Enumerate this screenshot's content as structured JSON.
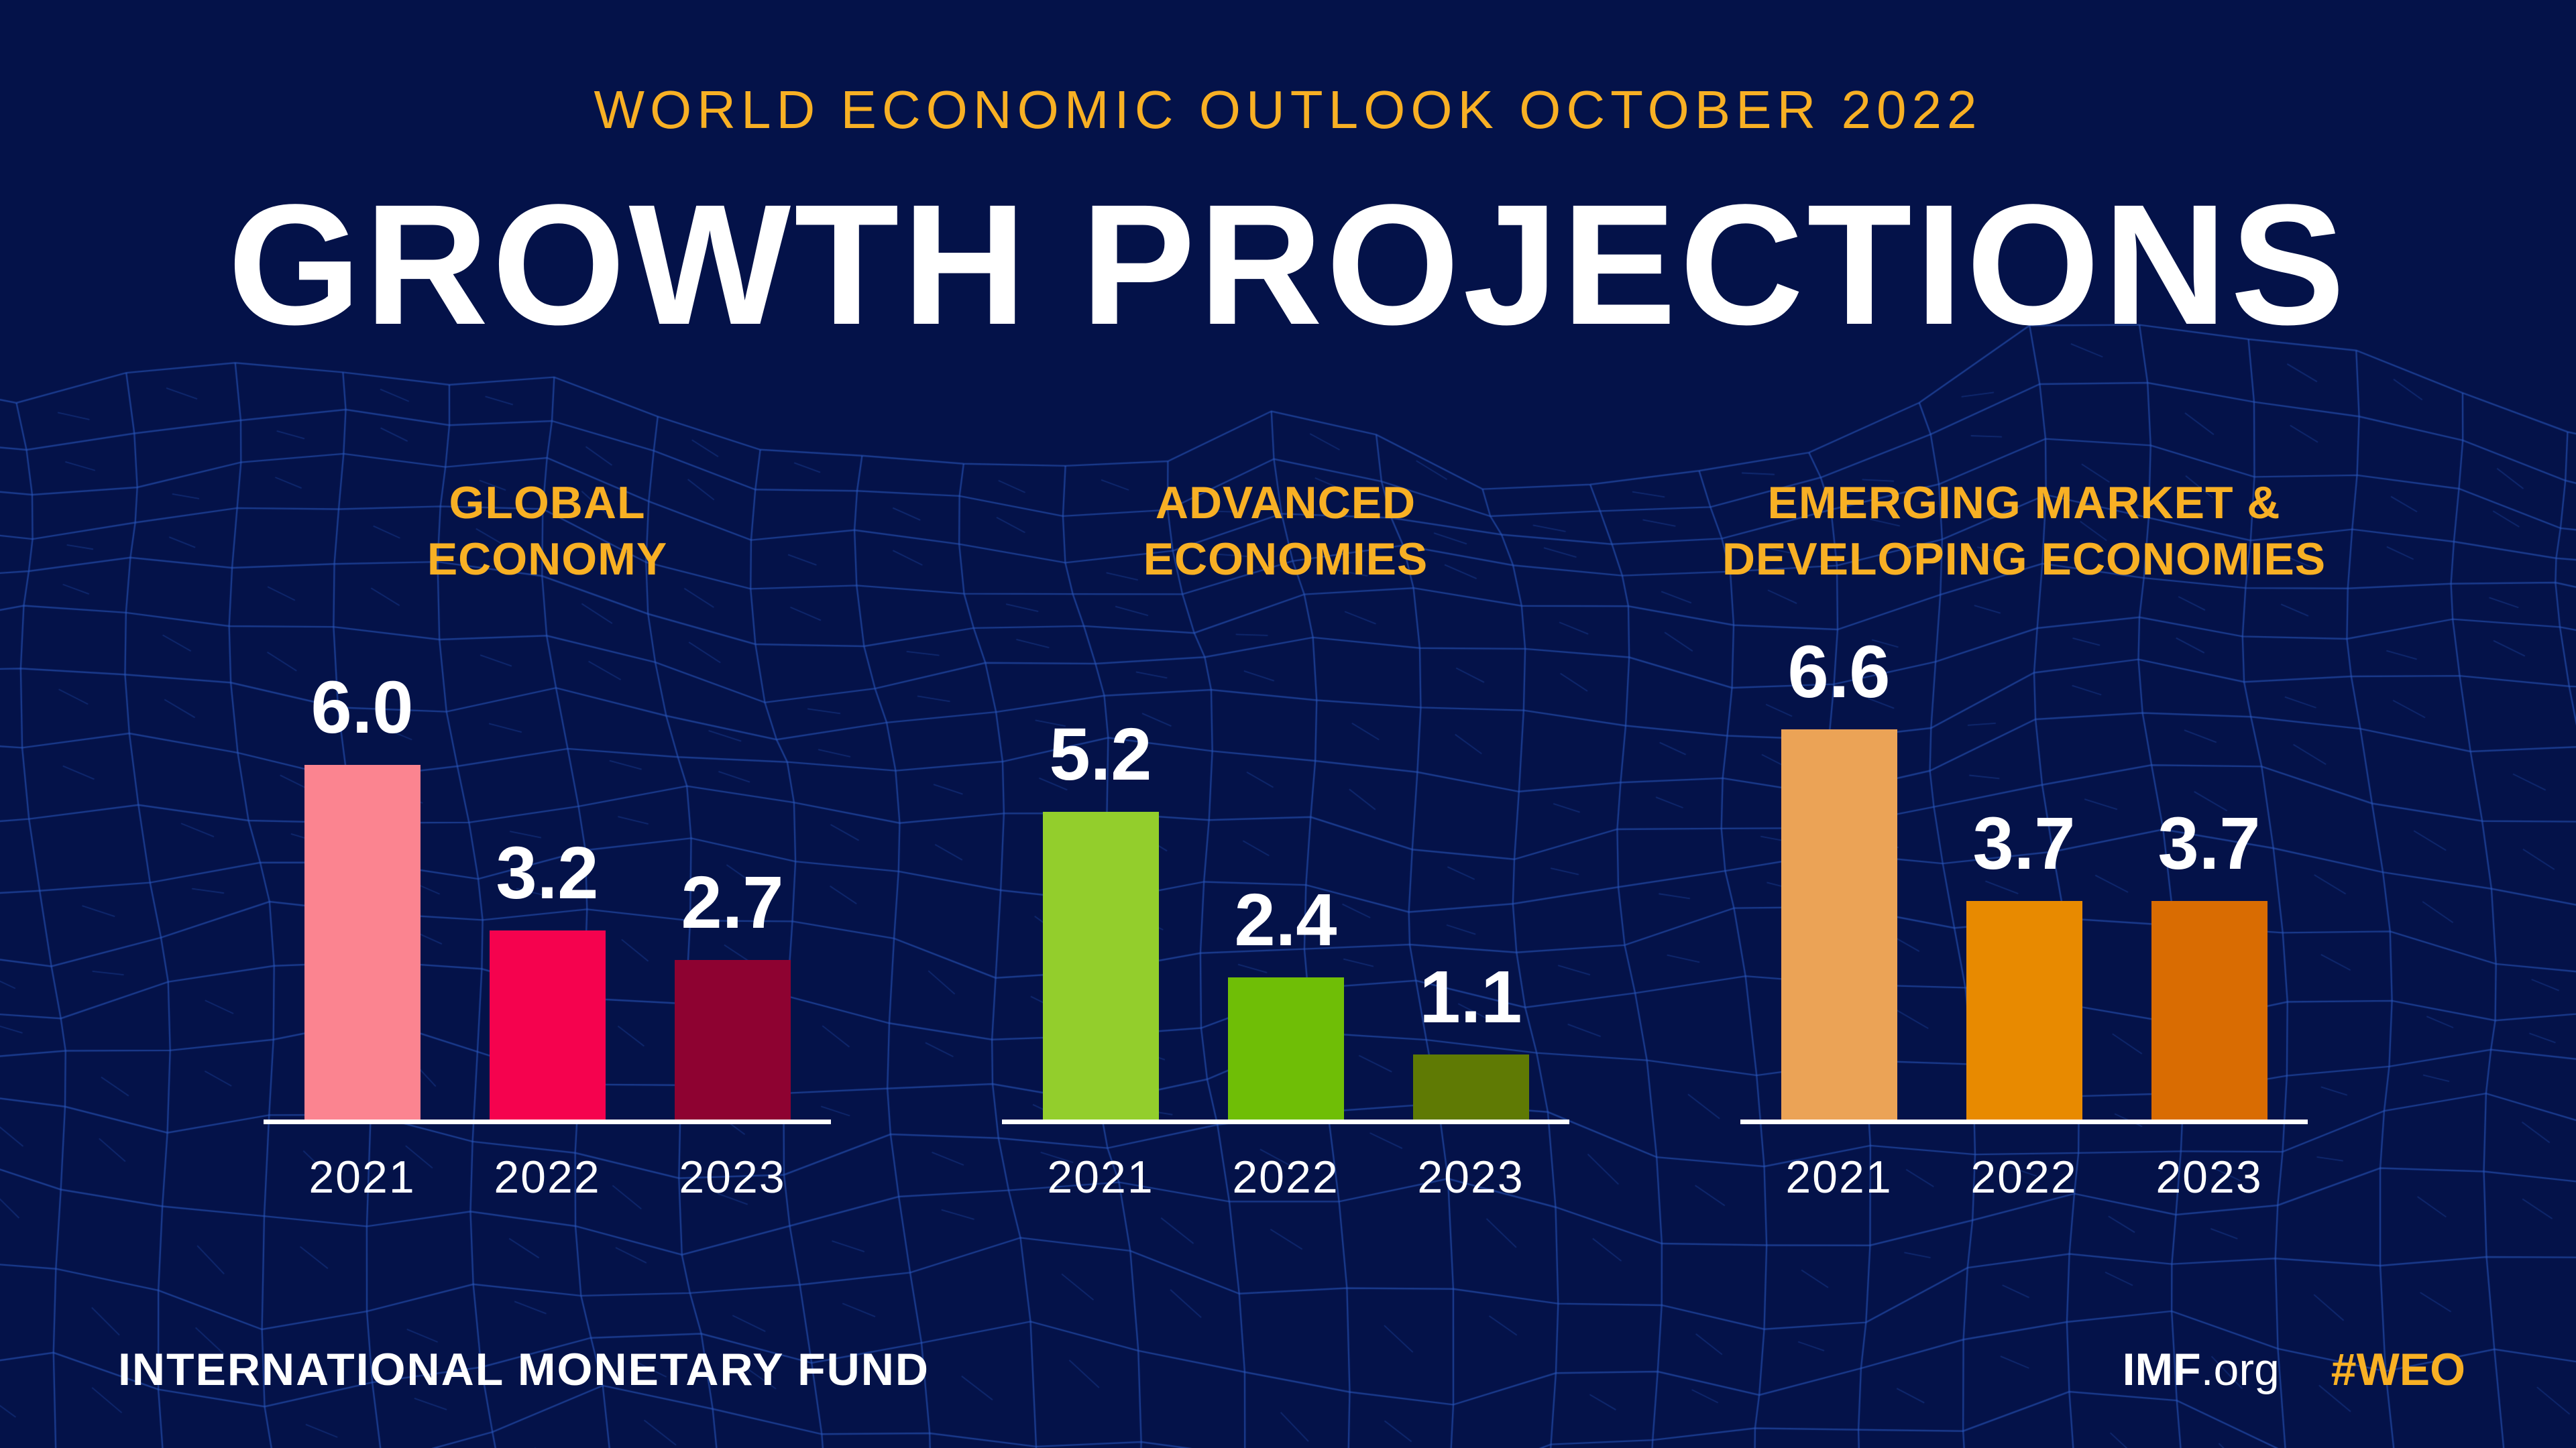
{
  "colors": {
    "background": "#041249",
    "gold": "#F8B024",
    "white": "#FFFFFF",
    "mesh_line": "#2C58BE",
    "axis": "#FFFFFF"
  },
  "header": {
    "kicker": "WORLD ECONOMIC OUTLOOK OCTOBER 2022",
    "title": "GROWTH PROJECTIONS"
  },
  "chart_data": [
    {
      "type": "bar",
      "title": "GLOBAL ECONOMY",
      "title_lines": [
        "GLOBAL",
        "ECONOMY"
      ],
      "categories": [
        "2021",
        "2022",
        "2023"
      ],
      "values": [
        6.0,
        3.2,
        2.7
      ],
      "value_labels": [
        "6.0",
        "3.2",
        "2.7"
      ],
      "bar_colors": [
        "#FB8490",
        "#F5024E",
        "#8E0231"
      ],
      "ylabel": "",
      "xlabel": "",
      "ylim": [
        0,
        6.6
      ],
      "grid": false,
      "legend": "none"
    },
    {
      "type": "bar",
      "title": "ADVANCED ECONOMIES",
      "title_lines": [
        "ADVANCED",
        "ECONOMIES"
      ],
      "categories": [
        "2021",
        "2022",
        "2023"
      ],
      "values": [
        5.2,
        2.4,
        1.1
      ],
      "value_labels": [
        "5.2",
        "2.4",
        "1.1"
      ],
      "bar_colors": [
        "#93CE2C",
        "#6FBE06",
        "#5F7A04"
      ],
      "ylabel": "",
      "xlabel": "",
      "ylim": [
        0,
        6.6
      ],
      "grid": false,
      "legend": "none"
    },
    {
      "type": "bar",
      "title": "EMERGING MARKET & DEVELOPING ECONOMIES",
      "title_lines": [
        "EMERGING MARKET &",
        "DEVELOPING ECONOMIES"
      ],
      "categories": [
        "2021",
        "2022",
        "2023"
      ],
      "values": [
        6.6,
        3.7,
        3.7
      ],
      "value_labels": [
        "6.6",
        "3.7",
        "3.7"
      ],
      "bar_colors": [
        "#EBA356",
        "#E88A00",
        "#D96C02"
      ],
      "ylabel": "",
      "xlabel": "",
      "ylim": [
        0,
        6.6
      ],
      "grid": false,
      "legend": "none"
    }
  ],
  "footer": {
    "org": "INTERNATIONAL MONETARY FUND",
    "site_bold": "IMF",
    "site_rest": ".org",
    "hashtag": "#WEO"
  }
}
